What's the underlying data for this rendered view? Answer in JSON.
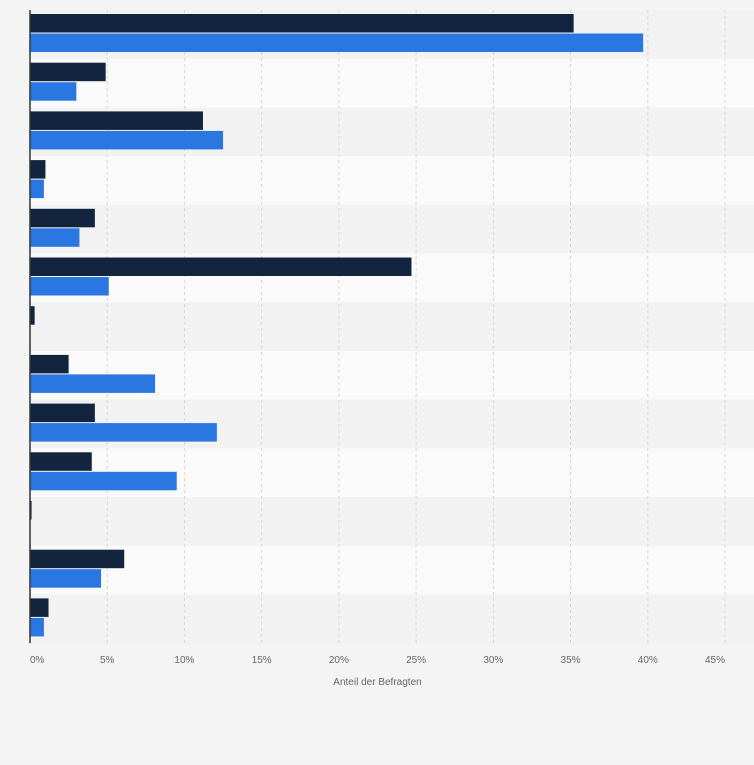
{
  "chart_data": {
    "type": "bar",
    "orientation": "horizontal",
    "categories": [
      "",
      "",
      "",
      "",
      "",
      "",
      "",
      "",
      "",
      "",
      "",
      "",
      ""
    ],
    "series": [
      {
        "values": [
          35.2,
          4.9,
          11.2,
          1.0,
          4.2,
          24.7,
          0.3,
          2.5,
          4.2,
          4.0,
          0.1,
          6.1,
          1.2
        ]
      },
      {
        "values": [
          39.7,
          3.0,
          12.5,
          0.9,
          3.2,
          5.1,
          0.0,
          8.1,
          12.1,
          9.5,
          0.0,
          4.6,
          0.9
        ]
      }
    ],
    "colors": [
      "#13253e",
      "#2b77e1"
    ],
    "xlabel": "Anteil der Befragten",
    "xlim": [
      0,
      45
    ],
    "xticks": [
      "0%",
      "5%",
      "10%",
      "15%",
      "20%",
      "25%",
      "30%",
      "35%",
      "40%",
      "45%"
    ],
    "grid": true,
    "legend": "none"
  }
}
